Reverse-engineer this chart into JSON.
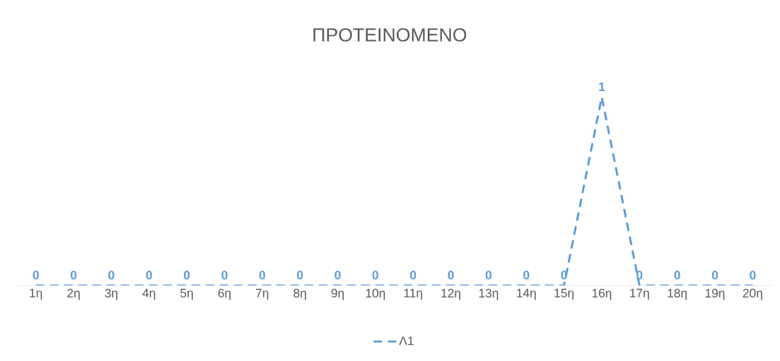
{
  "chart_data": {
    "type": "line",
    "title": "ΠΡΟΤΕΙΝΟΜΕΝΟ",
    "categories": [
      "1η",
      "2η",
      "3η",
      "4η",
      "5η",
      "6η",
      "7η",
      "8η",
      "9η",
      "10η",
      "11η",
      "12η",
      "13η",
      "14η",
      "15η",
      "16η",
      "17η",
      "18η",
      "19η",
      "20η"
    ],
    "series": [
      {
        "name": "Λ1",
        "color": "#5b9bd5",
        "values": [
          0,
          0,
          0,
          0,
          0,
          0,
          0,
          0,
          0,
          0,
          0,
          0,
          0,
          0,
          0,
          1,
          0,
          0,
          0,
          0
        ]
      }
    ],
    "data_labels": true,
    "legend": "bottom",
    "line_style": "dashed",
    "marker": "none",
    "grid": false
  }
}
